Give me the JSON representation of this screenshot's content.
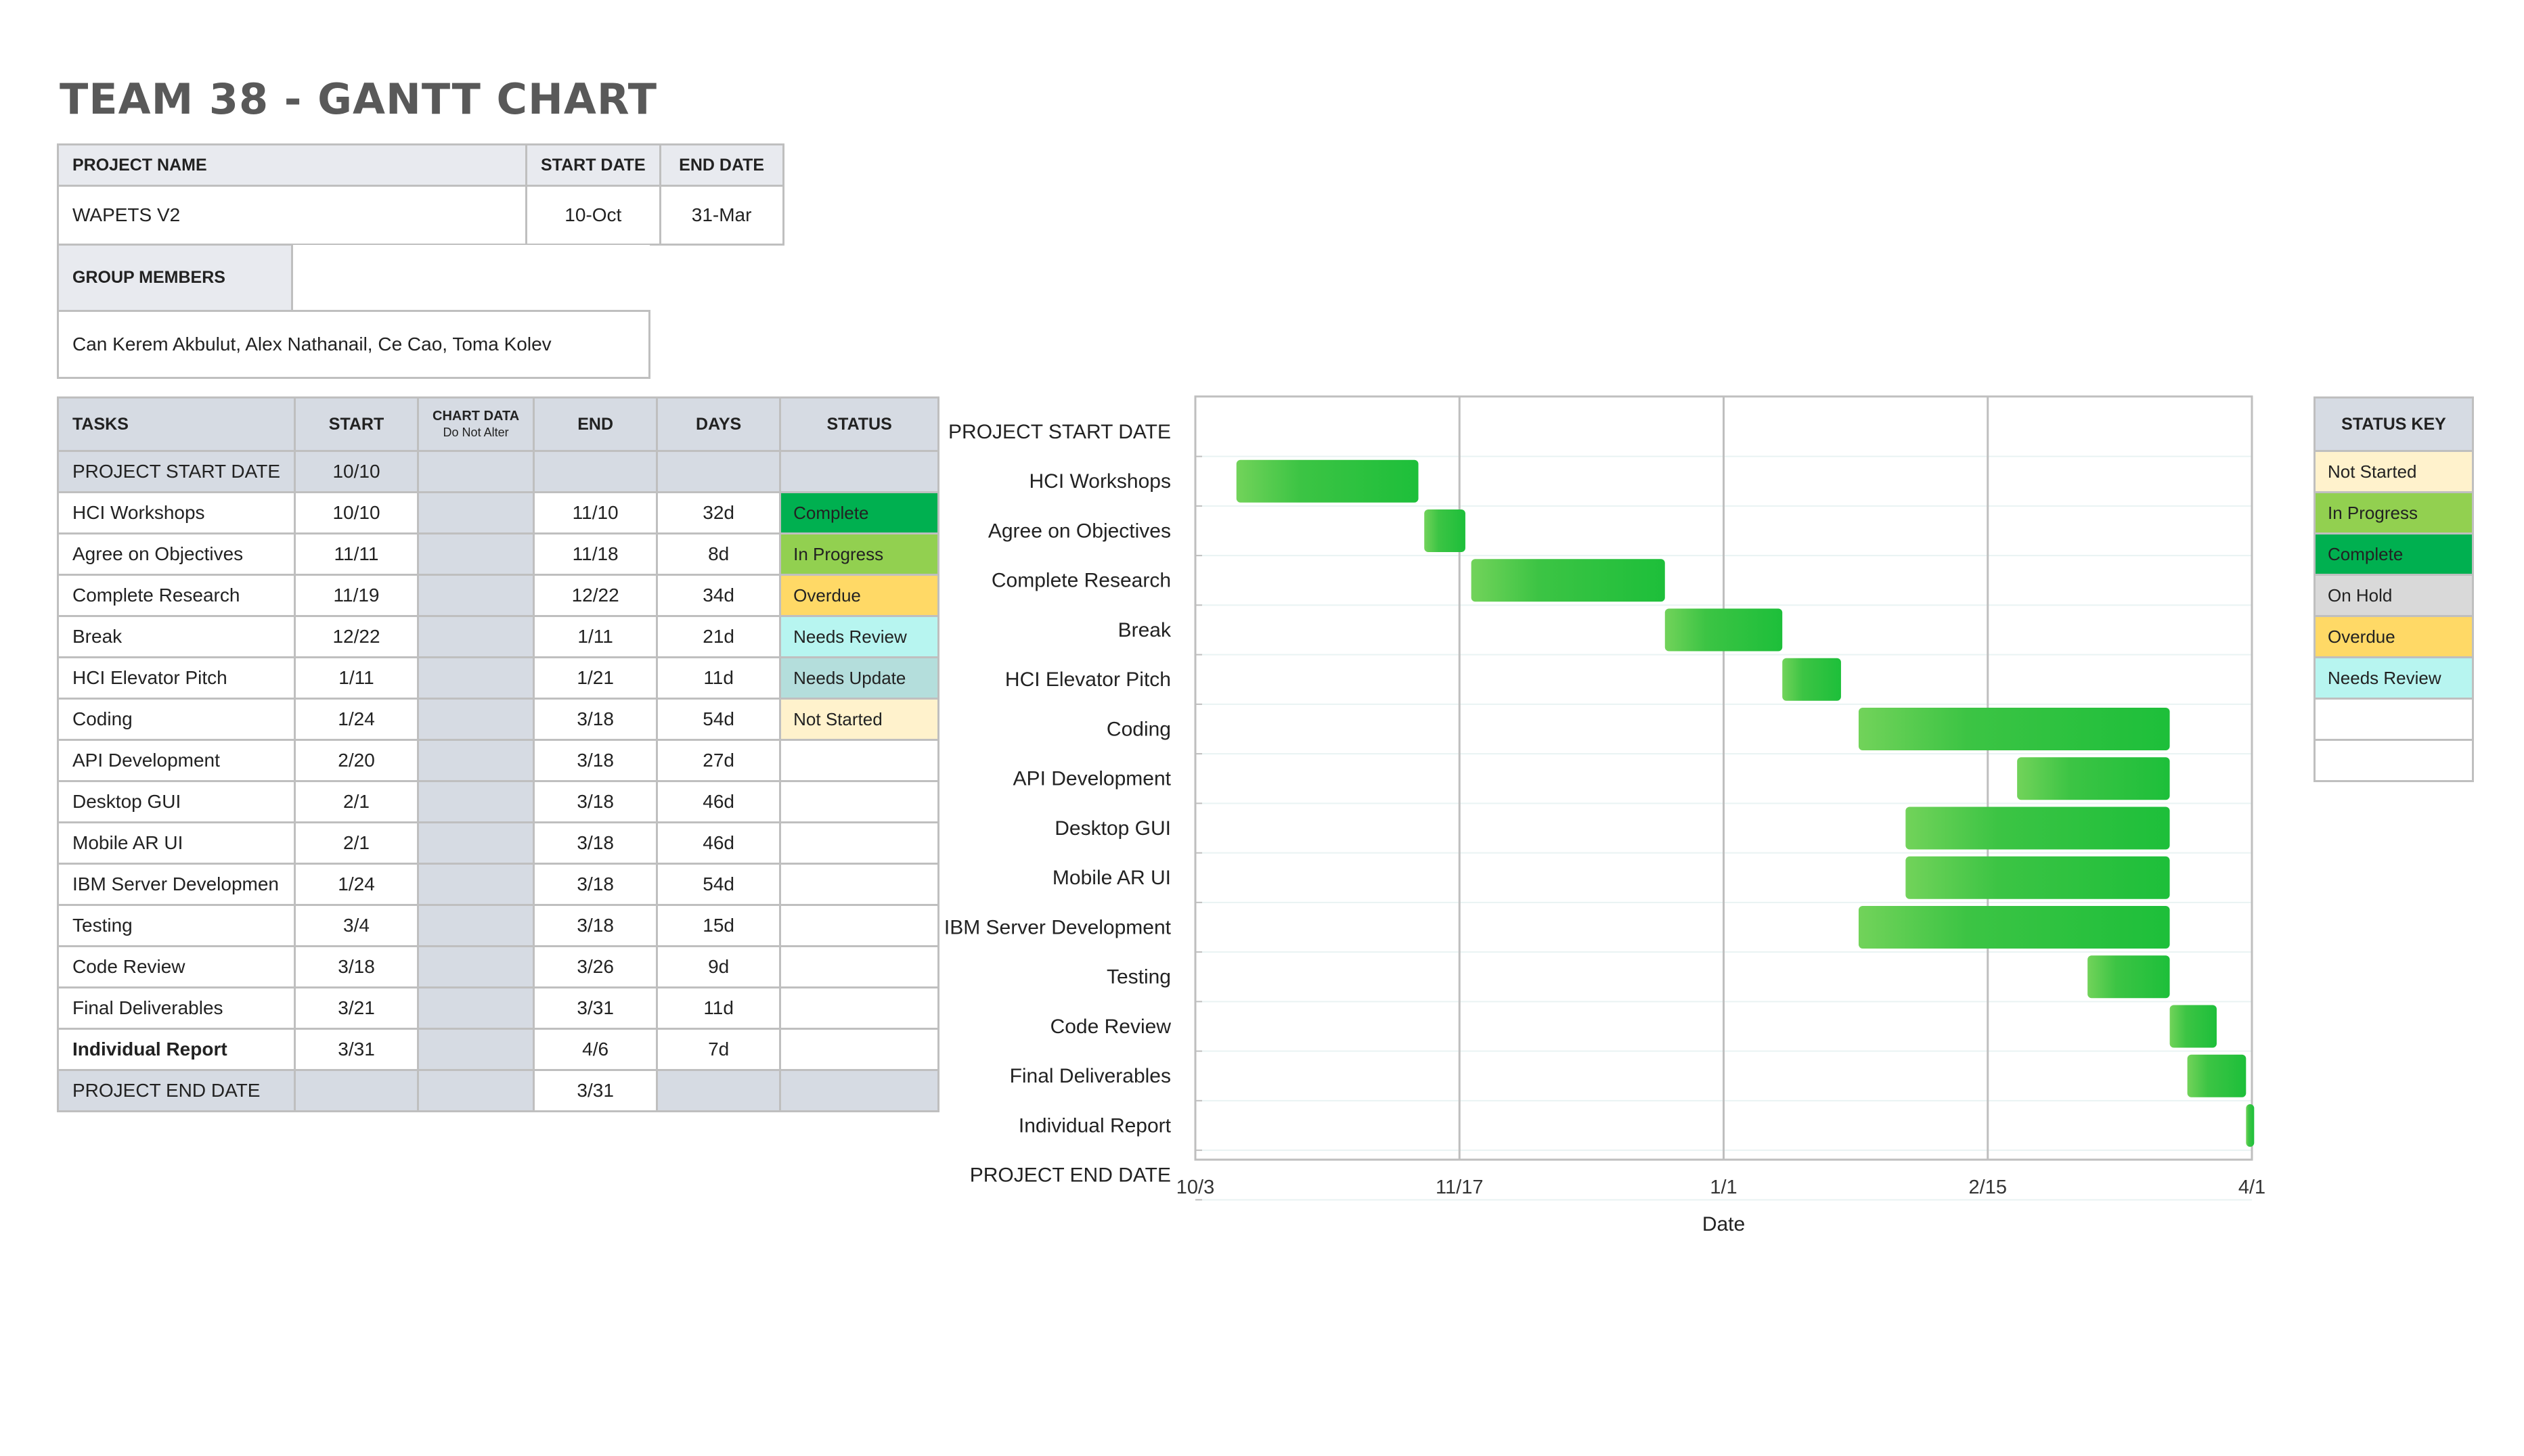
{
  "title": "TEAM 38 - GANTT CHART",
  "project": {
    "headers": {
      "name": "PROJECT NAME",
      "start": "START DATE",
      "end": "END DATE"
    },
    "name": "WAPETS V2",
    "start": "10-Oct",
    "end": "31-Mar",
    "members_label": "GROUP MEMBERS",
    "members": "Can Kerem Akbulut, Alex Nathanail, Ce Cao, Toma Kolev"
  },
  "tasks_table": {
    "headers": {
      "tasks": "TASKS",
      "start": "START",
      "chart_data": "CHART DATA",
      "chart_data_sub": "Do Not Alter",
      "end": "END",
      "days": "DAYS",
      "status": "STATUS"
    },
    "rows": [
      {
        "task": "PROJECT START DATE",
        "start": "10/10",
        "end": "",
        "days": "",
        "status": ""
      },
      {
        "task": "HCI Workshops",
        "start": "10/10",
        "end": "11/10",
        "days": "32d",
        "status": "Complete"
      },
      {
        "task": "Agree on Objectives",
        "start": "11/11",
        "end": "11/18",
        "days": "8d",
        "status": "In Progress"
      },
      {
        "task": "Complete Research",
        "start": "11/19",
        "end": "12/22",
        "days": "34d",
        "status": "Overdue"
      },
      {
        "task": "Break",
        "start": "12/22",
        "end": "1/11",
        "days": "21d",
        "status": "Needs Review"
      },
      {
        "task": "HCI Elevator Pitch",
        "start": "1/11",
        "end": "1/21",
        "days": "11d",
        "status": "Needs Update"
      },
      {
        "task": "Coding",
        "start": "1/24",
        "end": "3/18",
        "days": "54d",
        "status": "Not Started"
      },
      {
        "task": "API Development",
        "start": "2/20",
        "end": "3/18",
        "days": "27d",
        "status": ""
      },
      {
        "task": "Desktop GUI",
        "start": "2/1",
        "end": "3/18",
        "days": "46d",
        "status": ""
      },
      {
        "task": "Mobile AR UI",
        "start": "2/1",
        "end": "3/18",
        "days": "46d",
        "status": ""
      },
      {
        "task": "IBM Server Developmen",
        "start": "1/24",
        "end": "3/18",
        "days": "54d",
        "status": ""
      },
      {
        "task": "Testing",
        "start": "3/4",
        "end": "3/18",
        "days": "15d",
        "status": ""
      },
      {
        "task": "Code Review",
        "start": "3/18",
        "end": "3/26",
        "days": "9d",
        "status": ""
      },
      {
        "task": "Final Deliverables",
        "start": "3/21",
        "end": "3/31",
        "days": "11d",
        "status": ""
      },
      {
        "task": "Individual Report",
        "start": "3/31",
        "end": "4/6",
        "days": "7d",
        "status": ""
      },
      {
        "task": "PROJECT END DATE",
        "start": "",
        "end": "3/31",
        "days": "",
        "status": ""
      }
    ]
  },
  "status_colors": {
    "Complete": "#00b050",
    "In Progress": "#92d050",
    "Overdue": "#ffd966",
    "Needs Review": "#b7f5f0",
    "Needs Update": "#b4dedc",
    "Not Started": "#fff2cc",
    "On Hold": "#d9d9d9"
  },
  "status_key": {
    "header": "STATUS KEY",
    "items": [
      "Not Started",
      "In Progress",
      "Complete",
      "On Hold",
      "Overdue",
      "Needs Review",
      "",
      ""
    ]
  },
  "chart_data": {
    "type": "bar",
    "orientation": "horizontal",
    "xlabel": "Date",
    "x_ticks": [
      "10/3",
      "11/17",
      "1/1",
      "2/15",
      "4/1"
    ],
    "categories": [
      "PROJECT START DATE",
      "HCI Workshops",
      "Agree on Objectives",
      "Complete Research",
      "Break",
      "HCI Elevator Pitch",
      "Coding",
      "API Development",
      "Desktop GUI",
      "Mobile AR UI",
      "IBM Server Development",
      "Testing",
      "Code Review",
      "Final Deliverables",
      "Individual Report",
      "PROJECT END DATE"
    ],
    "bars": [
      {
        "task": "HCI Workshops",
        "start": "10/10",
        "end": "11/10"
      },
      {
        "task": "Agree on Objectives",
        "start": "11/11",
        "end": "11/18"
      },
      {
        "task": "Complete Research",
        "start": "11/19",
        "end": "12/22"
      },
      {
        "task": "Break",
        "start": "12/22",
        "end": "1/11"
      },
      {
        "task": "HCI Elevator Pitch",
        "start": "1/11",
        "end": "1/21"
      },
      {
        "task": "Coding",
        "start": "1/24",
        "end": "3/18"
      },
      {
        "task": "API Development",
        "start": "2/20",
        "end": "3/18"
      },
      {
        "task": "Desktop GUI",
        "start": "2/1",
        "end": "3/18"
      },
      {
        "task": "Mobile AR UI",
        "start": "2/1",
        "end": "3/18"
      },
      {
        "task": "IBM Server Development",
        "start": "1/24",
        "end": "3/18"
      },
      {
        "task": "Testing",
        "start": "3/4",
        "end": "3/18"
      },
      {
        "task": "Code Review",
        "start": "3/18",
        "end": "3/26"
      },
      {
        "task": "Final Deliverables",
        "start": "3/21",
        "end": "3/31"
      },
      {
        "task": "Individual Report",
        "start": "3/31",
        "end": "4/1"
      }
    ],
    "xlim": [
      "10/3",
      "4/1"
    ],
    "grid": true,
    "bar_color": "#1dbf3a"
  }
}
